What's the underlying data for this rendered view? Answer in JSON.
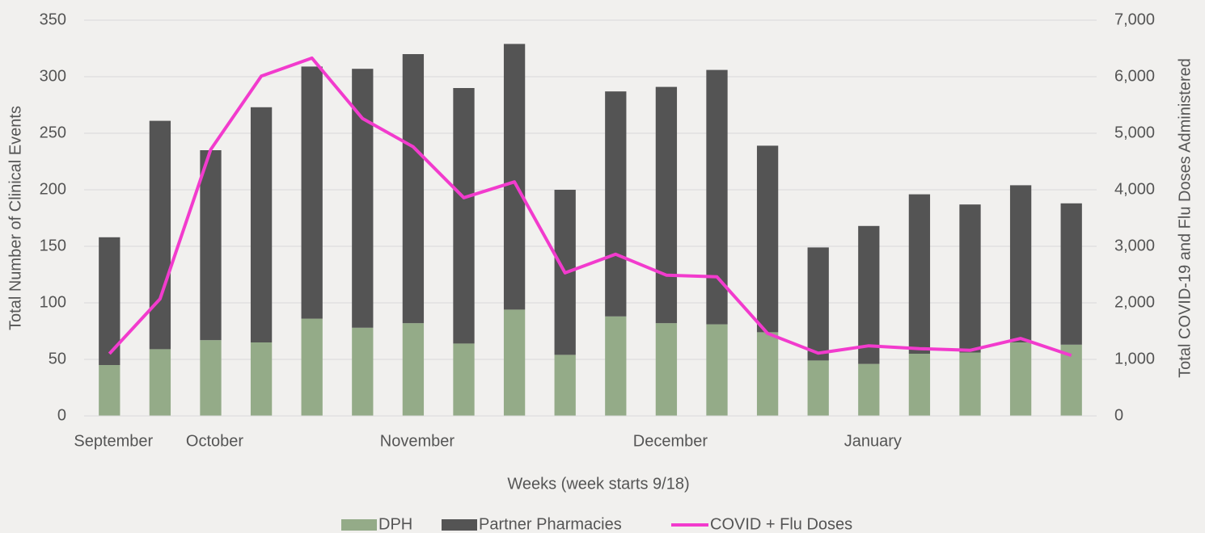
{
  "chart_data": {
    "type": "stacked-bar-line",
    "x_label": "Weeks (week starts 9/18)",
    "y_label": "Total Number of Clinical Events",
    "y2_label": "Total COVID-19 and Flu Doses Administered",
    "categories": [
      "September",
      null,
      "October",
      null,
      null,
      null,
      "November",
      null,
      null,
      null,
      null,
      "December",
      null,
      null,
      null,
      "January",
      null,
      null,
      null,
      null
    ],
    "series": [
      {
        "name": "DPH",
        "color": "#94ab88",
        "kind": "bar",
        "values": [
          45,
          59,
          67,
          65,
          86,
          78,
          82,
          64,
          94,
          54,
          88,
          82,
          81,
          74,
          49,
          46,
          55,
          56,
          65,
          63
        ]
      },
      {
        "name": "Partner Pharmacies",
        "color": "#545454",
        "kind": "bar",
        "values": [
          113,
          202,
          168,
          208,
          223,
          229,
          238,
          226,
          235,
          146,
          199,
          209,
          225,
          165,
          100,
          122,
          141,
          131,
          139,
          125
        ]
      },
      {
        "name": "COVID + Flu Doses",
        "color": "#f23bcd",
        "kind": "line",
        "axis": "y2",
        "values": [
          1100,
          2070,
          4710,
          6010,
          6330,
          5260,
          4760,
          3860,
          4140,
          2530,
          2860,
          2490,
          2460,
          1460,
          1110,
          1240,
          1190,
          1160,
          1370,
          1070
        ]
      }
    ],
    "ylim": [
      0,
      350
    ],
    "yticks": [
      0,
      50,
      100,
      150,
      200,
      250,
      300,
      350
    ],
    "y2lim": [
      0,
      7000
    ],
    "y2ticks": [
      0,
      {
        "value": 1000,
        "label": "1,000"
      },
      {
        "value": 2000,
        "label": "2,000"
      },
      {
        "value": 3000,
        "label": "3,000"
      },
      {
        "value": 4000,
        "label": "4,000"
      },
      {
        "value": 5000,
        "label": "5,000"
      },
      {
        "value": 6000,
        "label": "6,000"
      },
      {
        "value": 7000,
        "label": "7,000"
      }
    ],
    "grid": true,
    "legend": "bottom"
  }
}
